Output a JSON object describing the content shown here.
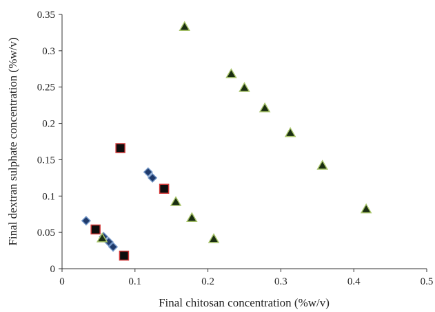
{
  "chart_data": {
    "type": "scatter",
    "title": "",
    "xlabel": "Final chitosan concentration (%w/v)",
    "ylabel": "Final dextran sulphate concentration (%w/v)",
    "xlim": [
      0,
      0.5
    ],
    "ylim": [
      0,
      0.35
    ],
    "x_ticks": [
      "0",
      "0.1",
      "0.2",
      "0.3",
      "0.4",
      "0.5"
    ],
    "y_ticks": [
      "0",
      "0.05",
      "0.1",
      "0.15",
      "0.2",
      "0.25",
      "0.3",
      "0.35"
    ],
    "grid": false,
    "legend": false,
    "series": [
      {
        "marker": "diamond",
        "fill": "#1f3a6b",
        "stroke": "#6f93c4",
        "points": [
          [
            0.033,
            0.066
          ],
          [
            0.057,
            0.044
          ],
          [
            0.064,
            0.037
          ],
          [
            0.07,
            0.03
          ],
          [
            0.118,
            0.133
          ],
          [
            0.124,
            0.125
          ]
        ]
      },
      {
        "marker": "square",
        "fill": "#0d0d0d",
        "stroke": "#d03a3a",
        "points": [
          [
            0.046,
            0.054
          ],
          [
            0.08,
            0.166
          ],
          [
            0.085,
            0.018
          ],
          [
            0.14,
            0.11
          ]
        ]
      },
      {
        "marker": "triangle",
        "fill": "#1a2e12",
        "stroke": "#a8c46a",
        "points": [
          [
            0.055,
            0.042
          ],
          [
            0.168,
            0.333
          ],
          [
            0.156,
            0.092
          ],
          [
            0.178,
            0.07
          ],
          [
            0.208,
            0.041
          ],
          [
            0.232,
            0.268
          ],
          [
            0.25,
            0.249
          ],
          [
            0.278,
            0.221
          ],
          [
            0.313,
            0.187
          ],
          [
            0.357,
            0.142
          ],
          [
            0.417,
            0.082
          ]
        ]
      }
    ]
  }
}
